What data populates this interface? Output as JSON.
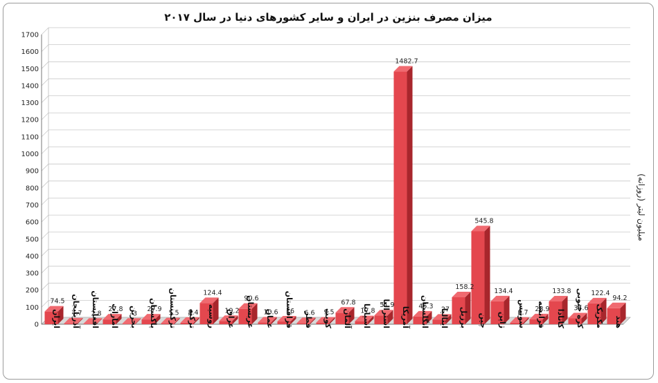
{
  "chart_data": {
    "type": "bar",
    "title": "میزان مصرف بنزین در ایران و سایر کشورهای دنیا در سال ۲۰۱۷",
    "ylabel": "میلیون لیتر (روزانه)",
    "xlabel": "",
    "ylim": [
      0,
      1700
    ],
    "yticks": [
      0,
      100,
      200,
      300,
      400,
      500,
      600,
      700,
      800,
      900,
      1000,
      1100,
      1200,
      1300,
      1400,
      1500,
      1600,
      1700
    ],
    "grid": true,
    "legend": "none",
    "categories": [
      "ایران",
      "آذربایجان",
      "افغانستان",
      "امارات",
      "بحرین",
      "پاکستان",
      "ترکمنستان",
      "ترکیه",
      "روسیه",
      "عراق",
      "عربستان",
      "عمان",
      "قزاقستان",
      "قطر",
      "کویت",
      "آلمان",
      "اسپانیا",
      "استرالیا",
      "آمریکا",
      "انگلستان",
      "ایتالیا",
      "برزیل",
      "چین",
      "ژاپن",
      "سوییس",
      "فرانسه",
      "کانادا",
      "کره جنوبی",
      "مکزیک",
      "هند"
    ],
    "values": [
      74.5,
      4.7,
      2.8,
      27.8,
      3,
      27.9,
      5.5,
      8.4,
      124.4,
      19.2,
      90.6,
      10.6,
      16,
      6.6,
      9.5,
      67.8,
      17.8,
      51.9,
      1482.7,
      45.3,
      27,
      158.2,
      545.8,
      134.4,
      8.7,
      28.9,
      133.8,
      34.6,
      122.4,
      94.2
    ],
    "value_labels": [
      "74.5",
      "4.7",
      "2.8",
      "27.8",
      "3",
      "27.9",
      "5.5",
      "8.4",
      "124.4",
      "19.2",
      "90.6",
      "10.6",
      "16",
      "6.6",
      "9.5",
      "67.8",
      "17.8",
      "51.9",
      "1482.7",
      "45.3",
      "27",
      "158.2",
      "545.8",
      "134.4",
      "8.7",
      "28.9",
      "133.8",
      "34.6",
      "122.4",
      "94.2"
    ],
    "bar_color": "#e4474e",
    "bar_side_color": "#a8262c",
    "bar_top_color": "#f06a70"
  }
}
